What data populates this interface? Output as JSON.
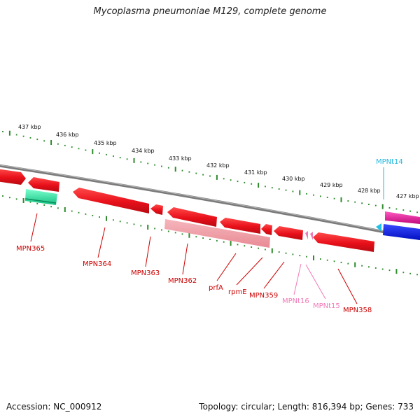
{
  "title": "Mycoplasma pneumoniae M129, complete genome",
  "footer": {
    "accession": "Accession: NC_000912",
    "topology": "Topology: circular; Length: 816,394 bp; Genes: 733"
  },
  "colors": {
    "backbone": "#7a7a7a",
    "tick": "#2e8b2e",
    "gene_red": "#e8101a",
    "gene_pink_light": "#f2a0a8",
    "gene_trna_pink": "#f07ab8",
    "gene_teal": "#2ee8a0",
    "gene_blue": "#0a1ae8",
    "gene_magenta": "#e8109a",
    "label_red": "#cc0000",
    "label_pink": "#f07ab8",
    "label_cyan": "#20b8e0"
  },
  "kbp_markers": [
    "437 kbp",
    "436 kbp",
    "435 kbp",
    "434 kbp",
    "433 kbp",
    "432 kbp",
    "431 kbp",
    "430 kbp",
    "429 kbp",
    "428 kbp",
    "427 kbp"
  ],
  "genes": [
    {
      "name": "MPN365",
      "color": "label_red"
    },
    {
      "name": "MPN364",
      "color": "label_red"
    },
    {
      "name": "MPN363",
      "color": "label_red"
    },
    {
      "name": "MPN362",
      "color": "label_red"
    },
    {
      "name": "prfA",
      "color": "label_red"
    },
    {
      "name": "rpmE",
      "color": "label_red"
    },
    {
      "name": "MPN359",
      "color": "label_red"
    },
    {
      "name": "MPNt16",
      "color": "label_pink"
    },
    {
      "name": "MPNt15",
      "color": "label_pink"
    },
    {
      "name": "MPN358",
      "color": "label_red"
    },
    {
      "name": "MPNt14",
      "color": "label_cyan"
    }
  ]
}
